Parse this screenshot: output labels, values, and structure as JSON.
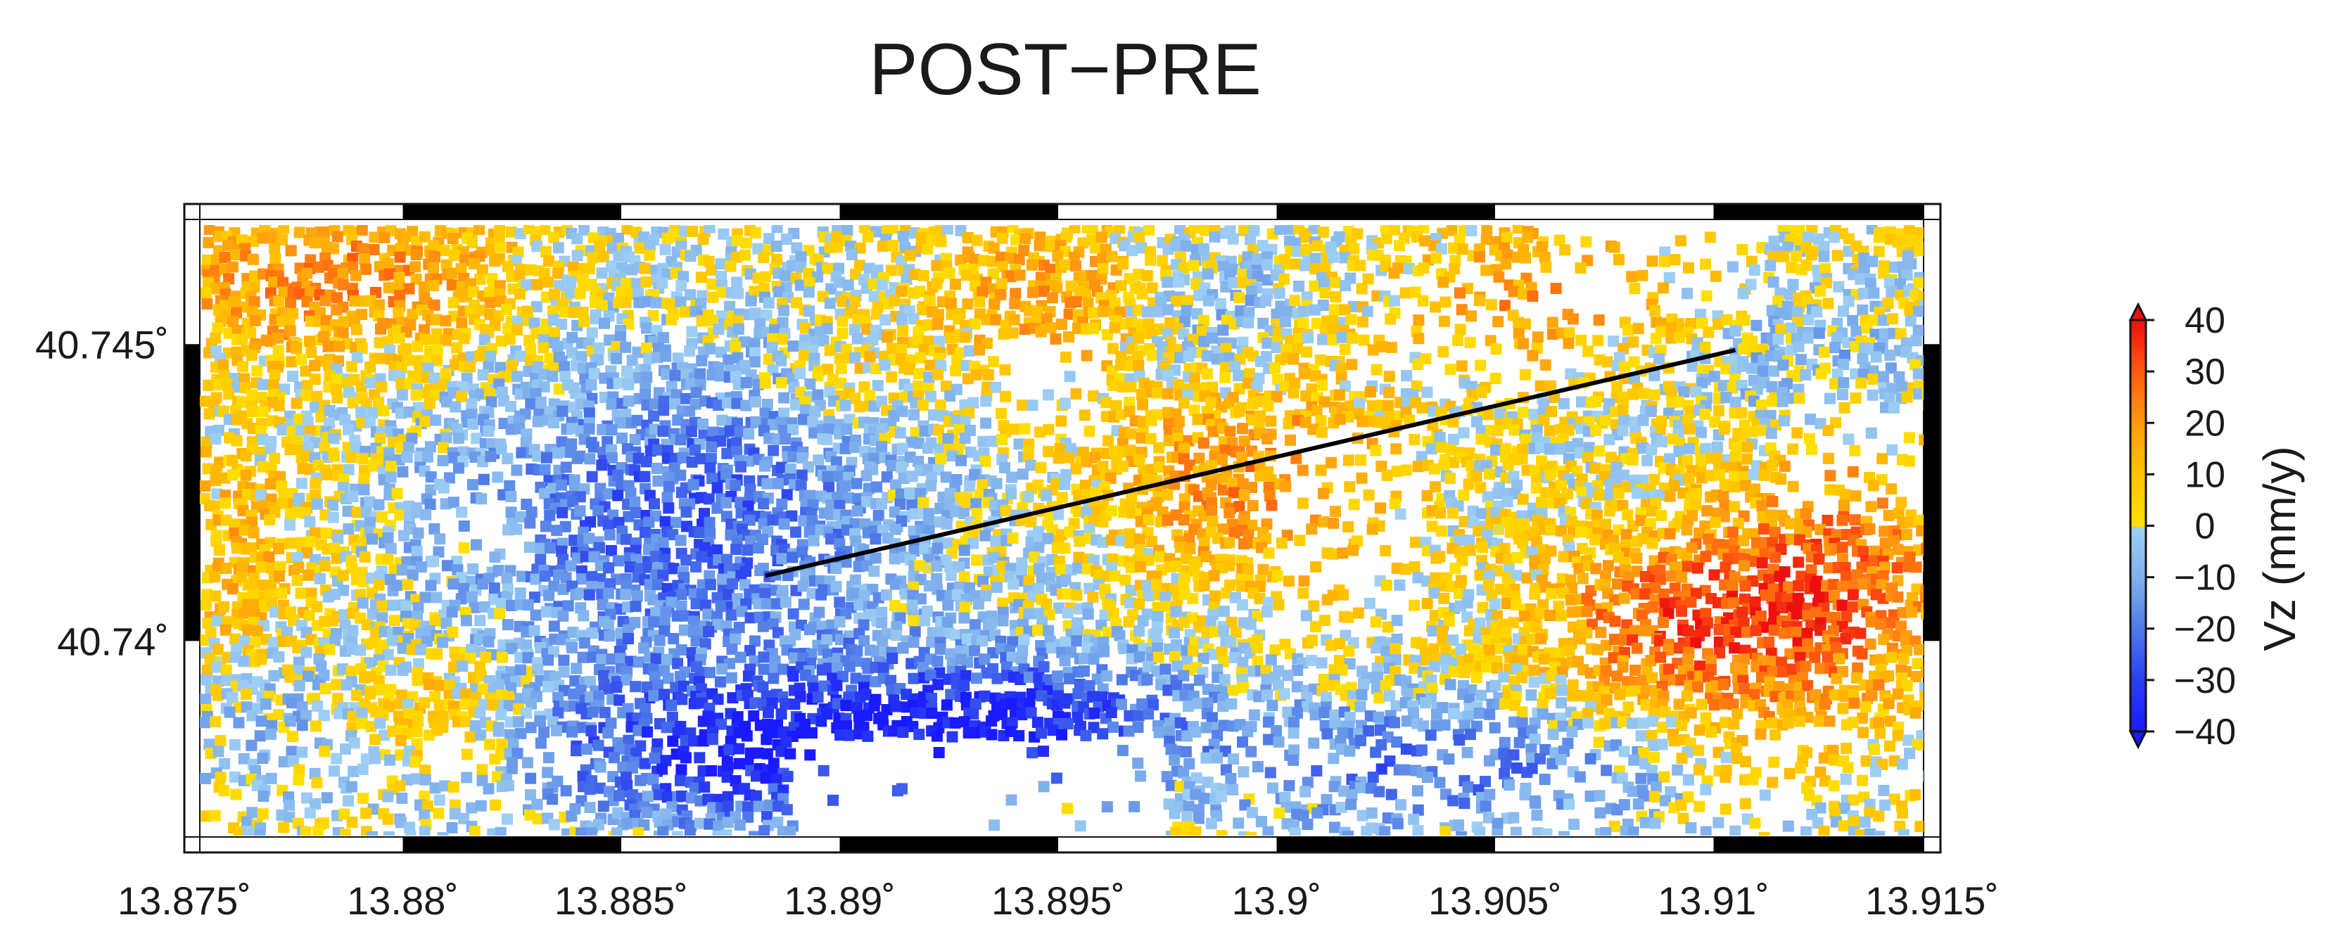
{
  "title": "POST−PRE",
  "map": {
    "lon_min": 13.875,
    "lon_max": 13.915,
    "lat_min": 40.7367,
    "lat_max": 40.7471,
    "x_ticks": [
      {
        "value": 13.875,
        "label": "13.875˚"
      },
      {
        "value": 13.88,
        "label": "13.88˚"
      },
      {
        "value": 13.885,
        "label": "13.885˚"
      },
      {
        "value": 13.89,
        "label": "13.89˚"
      },
      {
        "value": 13.895,
        "label": "13.895˚"
      },
      {
        "value": 13.9,
        "label": "13.9˚"
      },
      {
        "value": 13.905,
        "label": "13.905˚"
      },
      {
        "value": 13.91,
        "label": "13.91˚"
      },
      {
        "value": 13.915,
        "label": "13.915˚"
      }
    ],
    "y_ticks": [
      {
        "value": 40.745,
        "label": "40.745˚"
      },
      {
        "value": 40.74,
        "label": "40.74˚"
      }
    ],
    "profile_line": {
      "start": [
        13.8883,
        40.7411
      ],
      "end": [
        13.9105,
        40.7449
      ]
    }
  },
  "colorbar": {
    "label": "Vz (mm/y)",
    "min": -40,
    "max": 40,
    "ticks": [
      {
        "value": 40,
        "label": "40"
      },
      {
        "value": 30,
        "label": "30"
      },
      {
        "value": 20,
        "label": "20"
      },
      {
        "value": 10,
        "label": "10"
      },
      {
        "value": 0,
        "label": "0"
      },
      {
        "value": -10,
        "label": "−10"
      },
      {
        "value": -20,
        "label": "−20"
      },
      {
        "value": -30,
        "label": "−30"
      },
      {
        "value": -40,
        "label": "−40"
      }
    ],
    "colors": [
      {
        "value": -40,
        "color": "#1a1aff"
      },
      {
        "value": -30,
        "color": "#2a3ef0"
      },
      {
        "value": -20,
        "color": "#4f7ae8"
      },
      {
        "value": -10,
        "color": "#7fb0ec"
      },
      {
        "value": 0,
        "color": "#9fd0f4"
      },
      {
        "value": 0.01,
        "color": "#ffe000"
      },
      {
        "value": 10,
        "color": "#ffc400"
      },
      {
        "value": 20,
        "color": "#ff9a10"
      },
      {
        "value": 30,
        "color": "#ff5a10"
      },
      {
        "value": 40,
        "color": "#ee1010"
      }
    ]
  }
}
